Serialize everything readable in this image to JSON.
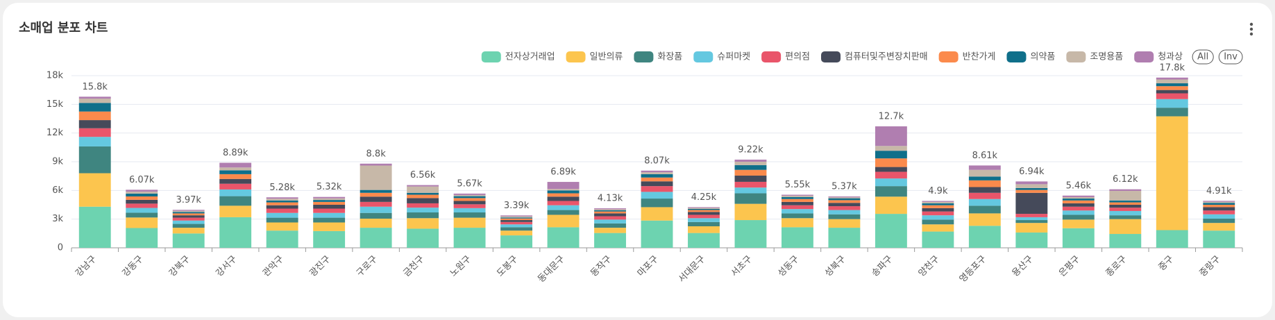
{
  "chart_data": {
    "type": "stacked_bar",
    "title": "소매업 분포 차트",
    "categories": [
      "강남구",
      "강동구",
      "강북구",
      "강서구",
      "관악구",
      "광진구",
      "구로구",
      "금천구",
      "노원구",
      "도봉구",
      "동대문구",
      "동작구",
      "마포구",
      "서대문구",
      "서초구",
      "성동구",
      "성북구",
      "송파구",
      "양천구",
      "영등포구",
      "용산구",
      "은평구",
      "종로구",
      "중구",
      "중랑구"
    ],
    "series": [
      {
        "name": "전자상거래업",
        "color": "#6dd3b0",
        "values": [
          4300,
          2070,
          1500,
          3200,
          1800,
          1750,
          2100,
          2000,
          2100,
          1300,
          2150,
          1550,
          2850,
          1550,
          2900,
          2150,
          2100,
          3550,
          1700,
          2300,
          1600,
          2050,
          1450,
          1850,
          1800
        ]
      },
      {
        "name": "일반의류",
        "color": "#fcc54e",
        "values": [
          3500,
          1100,
          600,
          1200,
          850,
          900,
          950,
          1100,
          1050,
          500,
          1300,
          550,
          1400,
          700,
          1700,
          950,
          900,
          1800,
          750,
          1300,
          1000,
          900,
          1550,
          11900,
          800
        ]
      },
      {
        "name": "화장품",
        "color": "#3f8580",
        "values": [
          2800,
          500,
          400,
          1000,
          500,
          500,
          600,
          600,
          550,
          350,
          500,
          450,
          900,
          450,
          1100,
          500,
          500,
          1100,
          500,
          800,
          300,
          500,
          400,
          900,
          450
        ]
      },
      {
        "name": "슈퍼마켓",
        "color": "#64c8e0",
        "values": [
          1000,
          500,
          350,
          700,
          500,
          500,
          650,
          500,
          450,
          300,
          500,
          400,
          700,
          400,
          600,
          450,
          450,
          800,
          450,
          700,
          300,
          450,
          450,
          900,
          450
        ]
      },
      {
        "name": "편의점",
        "color": "#e9556a",
        "values": [
          900,
          450,
          300,
          600,
          450,
          450,
          500,
          450,
          400,
          250,
          450,
          350,
          600,
          350,
          600,
          400,
          400,
          700,
          400,
          650,
          350,
          400,
          350,
          600,
          400
        ]
      },
      {
        "name": "컴퓨터및주변장치판매",
        "color": "#454a5a",
        "values": [
          850,
          400,
          250,
          500,
          350,
          400,
          550,
          550,
          350,
          200,
          450,
          300,
          500,
          300,
          650,
          350,
          350,
          500,
          350,
          600,
          2200,
          350,
          300,
          350,
          350
        ]
      },
      {
        "name": "반찬가게",
        "color": "#fb8a4c",
        "values": [
          900,
          350,
          200,
          500,
          300,
          300,
          400,
          350,
          300,
          170,
          350,
          200,
          400,
          200,
          600,
          300,
          280,
          900,
          300,
          700,
          300,
          300,
          250,
          400,
          250
        ]
      },
      {
        "name": "의약품",
        "color": "#0f6f8a",
        "values": [
          900,
          300,
          150,
          400,
          200,
          200,
          300,
          200,
          200,
          100,
          300,
          130,
          350,
          120,
          500,
          200,
          200,
          800,
          200,
          400,
          200,
          200,
          200,
          300,
          200
        ]
      },
      {
        "name": "조명용품",
        "color": "#c7b8a8",
        "values": [
          450,
          200,
          120,
          300,
          180,
          170,
          2550,
          660,
          120,
          120,
          150,
          100,
          200,
          100,
          350,
          150,
          100,
          500,
          150,
          700,
          400,
          150,
          1000,
          400,
          110
        ]
      },
      {
        "name": "청과상",
        "color": "#b07eb0",
        "values": [
          200,
          200,
          100,
          490,
          150,
          150,
          200,
          150,
          150,
          100,
          740,
          100,
          170,
          80,
          220,
          100,
          90,
          2050,
          100,
          460,
          290,
          160,
          170,
          200,
          100
        ]
      }
    ],
    "total_labels": [
      "15.8k",
      "6.07k",
      "3.97k",
      "8.89k",
      "5.28k",
      "5.32k",
      "8.8k",
      "6.56k",
      "5.67k",
      "3.39k",
      "6.89k",
      "4.13k",
      "8.07k",
      "4.25k",
      "9.22k",
      "5.55k",
      "5.37k",
      "12.7k",
      "4.9k",
      "8.61k",
      "6.94k",
      "5.46k",
      "6.12k",
      "17.8k",
      "4.91k"
    ],
    "ylim": [
      0,
      18000
    ],
    "yticks": [
      0,
      {
        "value": 3000,
        "label": "3k"
      },
      {
        "value": 6000,
        "label": "6k"
      },
      {
        "value": 9000,
        "label": "9k"
      },
      {
        "value": 12000,
        "label": "12k"
      },
      {
        "value": 15000,
        "label": "15k"
      },
      {
        "value": 18000,
        "label": "18k"
      }
    ],
    "grid": true,
    "legend_position": "top-right",
    "buttons": [
      "All",
      "Inv"
    ]
  }
}
